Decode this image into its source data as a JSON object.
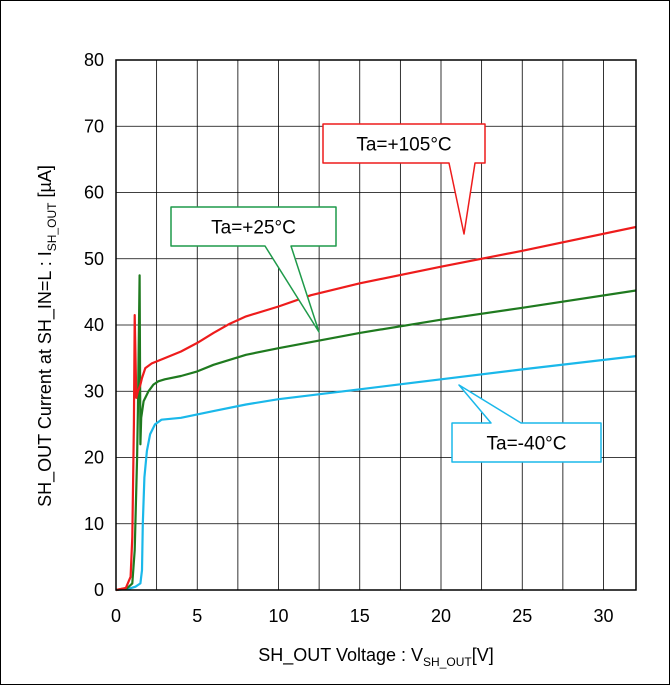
{
  "chart_data": {
    "type": "line",
    "xlabel_main": "SH_OUT Voltage : V",
    "xlabel_sub": "SH_OUT",
    "xlabel_tail": "[V]",
    "ylabel_main": "SH_OUT  Current at  SH_IN=L : I",
    "ylabel_sub": "SH_OUT",
    "ylabel_tail": " [µA]",
    "xlim": [
      0,
      32
    ],
    "ylim": [
      0,
      80
    ],
    "xticks": [
      0,
      5,
      10,
      15,
      20,
      25,
      30
    ],
    "yticks": [
      0,
      10,
      20,
      30,
      40,
      50,
      60,
      70,
      80
    ],
    "xgrid_step": 2.5,
    "grid": true,
    "series": [
      {
        "name": "Ta=-40°C",
        "color": "#1ab8ea",
        "points": [
          [
            0,
            0
          ],
          [
            0.8,
            0.2
          ],
          [
            1.2,
            0.5
          ],
          [
            1.5,
            1
          ],
          [
            1.6,
            3
          ],
          [
            1.65,
            10
          ],
          [
            1.75,
            17
          ],
          [
            1.9,
            21
          ],
          [
            2.1,
            23.5
          ],
          [
            2.4,
            25
          ],
          [
            2.8,
            25.7
          ],
          [
            4,
            26
          ],
          [
            6,
            27
          ],
          [
            8,
            28
          ],
          [
            10,
            28.8
          ],
          [
            15,
            30.3
          ],
          [
            20,
            31.8
          ],
          [
            25,
            33.3
          ],
          [
            32,
            35.3
          ]
        ]
      },
      {
        "name": "Ta=+25°C",
        "color": "#1f7a1f",
        "points": [
          [
            0,
            0
          ],
          [
            0.7,
            0.3
          ],
          [
            1.0,
            1
          ],
          [
            1.15,
            6
          ],
          [
            1.3,
            20
          ],
          [
            1.35,
            27
          ],
          [
            1.45,
            47.5
          ],
          [
            1.5,
            22
          ],
          [
            1.55,
            26
          ],
          [
            1.7,
            28.5
          ],
          [
            2,
            30
          ],
          [
            2.3,
            31
          ],
          [
            2.6,
            31.5
          ],
          [
            3,
            31.8
          ],
          [
            4,
            32.3
          ],
          [
            5,
            33
          ],
          [
            6,
            34
          ],
          [
            8,
            35.5
          ],
          [
            10,
            36.5
          ],
          [
            15,
            38.8
          ],
          [
            20,
            40.8
          ],
          [
            25,
            42.6
          ],
          [
            32,
            45.2
          ]
        ]
      },
      {
        "name": "Ta=+105°C",
        "color": "#ee1c1c",
        "points": [
          [
            0,
            0
          ],
          [
            0.6,
            0.3
          ],
          [
            0.9,
            2
          ],
          [
            1.0,
            8
          ],
          [
            1.1,
            25
          ],
          [
            1.15,
            41.5
          ],
          [
            1.25,
            29
          ],
          [
            1.35,
            30
          ],
          [
            1.5,
            31
          ],
          [
            1.6,
            32
          ],
          [
            1.8,
            33.5
          ],
          [
            2.2,
            34.2
          ],
          [
            3,
            35
          ],
          [
            4,
            36
          ],
          [
            5,
            37.3
          ],
          [
            6,
            38.8
          ],
          [
            7,
            40.2
          ],
          [
            8,
            41.3
          ],
          [
            10,
            42.8
          ],
          [
            12,
            44.5
          ],
          [
            15,
            46.3
          ],
          [
            20,
            48.8
          ],
          [
            25,
            51.2
          ],
          [
            32,
            54.8
          ]
        ]
      }
    ],
    "annotations": [
      {
        "text": "Ta=+105°C",
        "color": "#ee1c1c"
      },
      {
        "text": "Ta=+25°C",
        "color": "#1f9a4a"
      },
      {
        "text": "Ta=-40°C",
        "color": "#1ab8ea"
      }
    ]
  }
}
